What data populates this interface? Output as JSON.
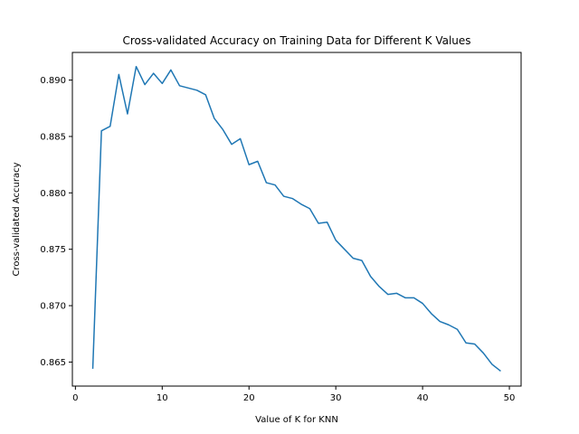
{
  "chart_data": {
    "type": "line",
    "title": "Cross-validated Accuracy on Training Data for Different K Values",
    "xlabel": "Value of K for KNN",
    "ylabel": "Cross-validated Accuracy",
    "xlim": [
      -0.35,
      51.35
    ],
    "ylim": [
      0.86287,
      0.89245
    ],
    "xticks": [
      0,
      10,
      20,
      30,
      40,
      50
    ],
    "yticks": [
      0.865,
      0.87,
      0.875,
      0.88,
      0.885,
      0.89
    ],
    "xtick_labels": [
      "0",
      "10",
      "20",
      "30",
      "40",
      "50"
    ],
    "ytick_labels": [
      "0.865",
      "0.870",
      "0.875",
      "0.880",
      "0.885",
      "0.890"
    ],
    "grid": false,
    "legend": "none",
    "series": [
      {
        "color": "#1f77b4",
        "x": [
          2,
          3,
          4,
          5,
          6,
          7,
          8,
          9,
          10,
          11,
          12,
          13,
          14,
          15,
          16,
          17,
          18,
          19,
          20,
          21,
          22,
          23,
          24,
          25,
          26,
          27,
          28,
          29,
          30,
          31,
          32,
          33,
          34,
          35,
          36,
          37,
          38,
          39,
          40,
          41,
          42,
          43,
          44,
          45,
          46,
          47,
          48,
          49
        ],
        "y": [
          0.8644,
          0.8855,
          0.8859,
          0.8905,
          0.887,
          0.8912,
          0.8896,
          0.8906,
          0.8897,
          0.8909,
          0.8895,
          0.8893,
          0.8891,
          0.8887,
          0.8866,
          0.8856,
          0.8843,
          0.8848,
          0.8825,
          0.8828,
          0.8809,
          0.8807,
          0.8797,
          0.8795,
          0.879,
          0.8786,
          0.8773,
          0.8774,
          0.8758,
          0.875,
          0.8742,
          0.874,
          0.8726,
          0.8717,
          0.871,
          0.8711,
          0.8707,
          0.8707,
          0.8702,
          0.8693,
          0.8686,
          0.8683,
          0.8679,
          0.8667,
          0.8666,
          0.8658,
          0.8648,
          0.8642
        ]
      }
    ]
  }
}
